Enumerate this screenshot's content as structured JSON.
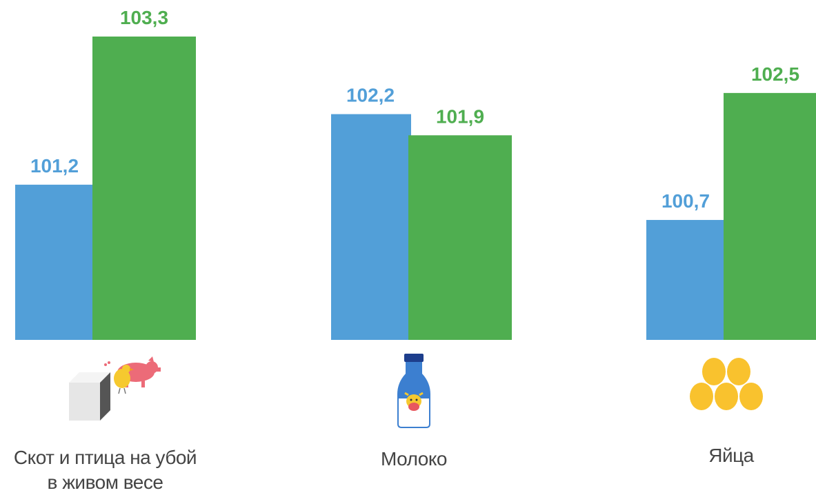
{
  "chart_data": {
    "type": "bar",
    "categories": [
      "Скот и птица на убой в живом весе",
      "Молоко",
      "Яйца"
    ],
    "category_lines": [
      [
        "Скот и птица на убой",
        "в живом весе"
      ],
      [
        "Молоко"
      ],
      [
        "Яйца"
      ]
    ],
    "series": [
      {
        "values": [
          101.2,
          102.2,
          100.7
        ],
        "labels": [
          "101,2",
          "102,2",
          "100,7"
        ],
        "color": "#529fd8"
      },
      {
        "values": [
          103.3,
          101.9,
          102.5
        ],
        "labels": [
          "103,3",
          "101,9",
          "102,5"
        ],
        "color": "#4fae50"
      }
    ],
    "ylim": [
      99.0,
      103.3
    ],
    "title": "",
    "xlabel": "",
    "ylabel": "",
    "grid": false,
    "legend": "none"
  },
  "icons": [
    "livestock-icon",
    "milk-bottle-icon",
    "eggs-icon"
  ]
}
